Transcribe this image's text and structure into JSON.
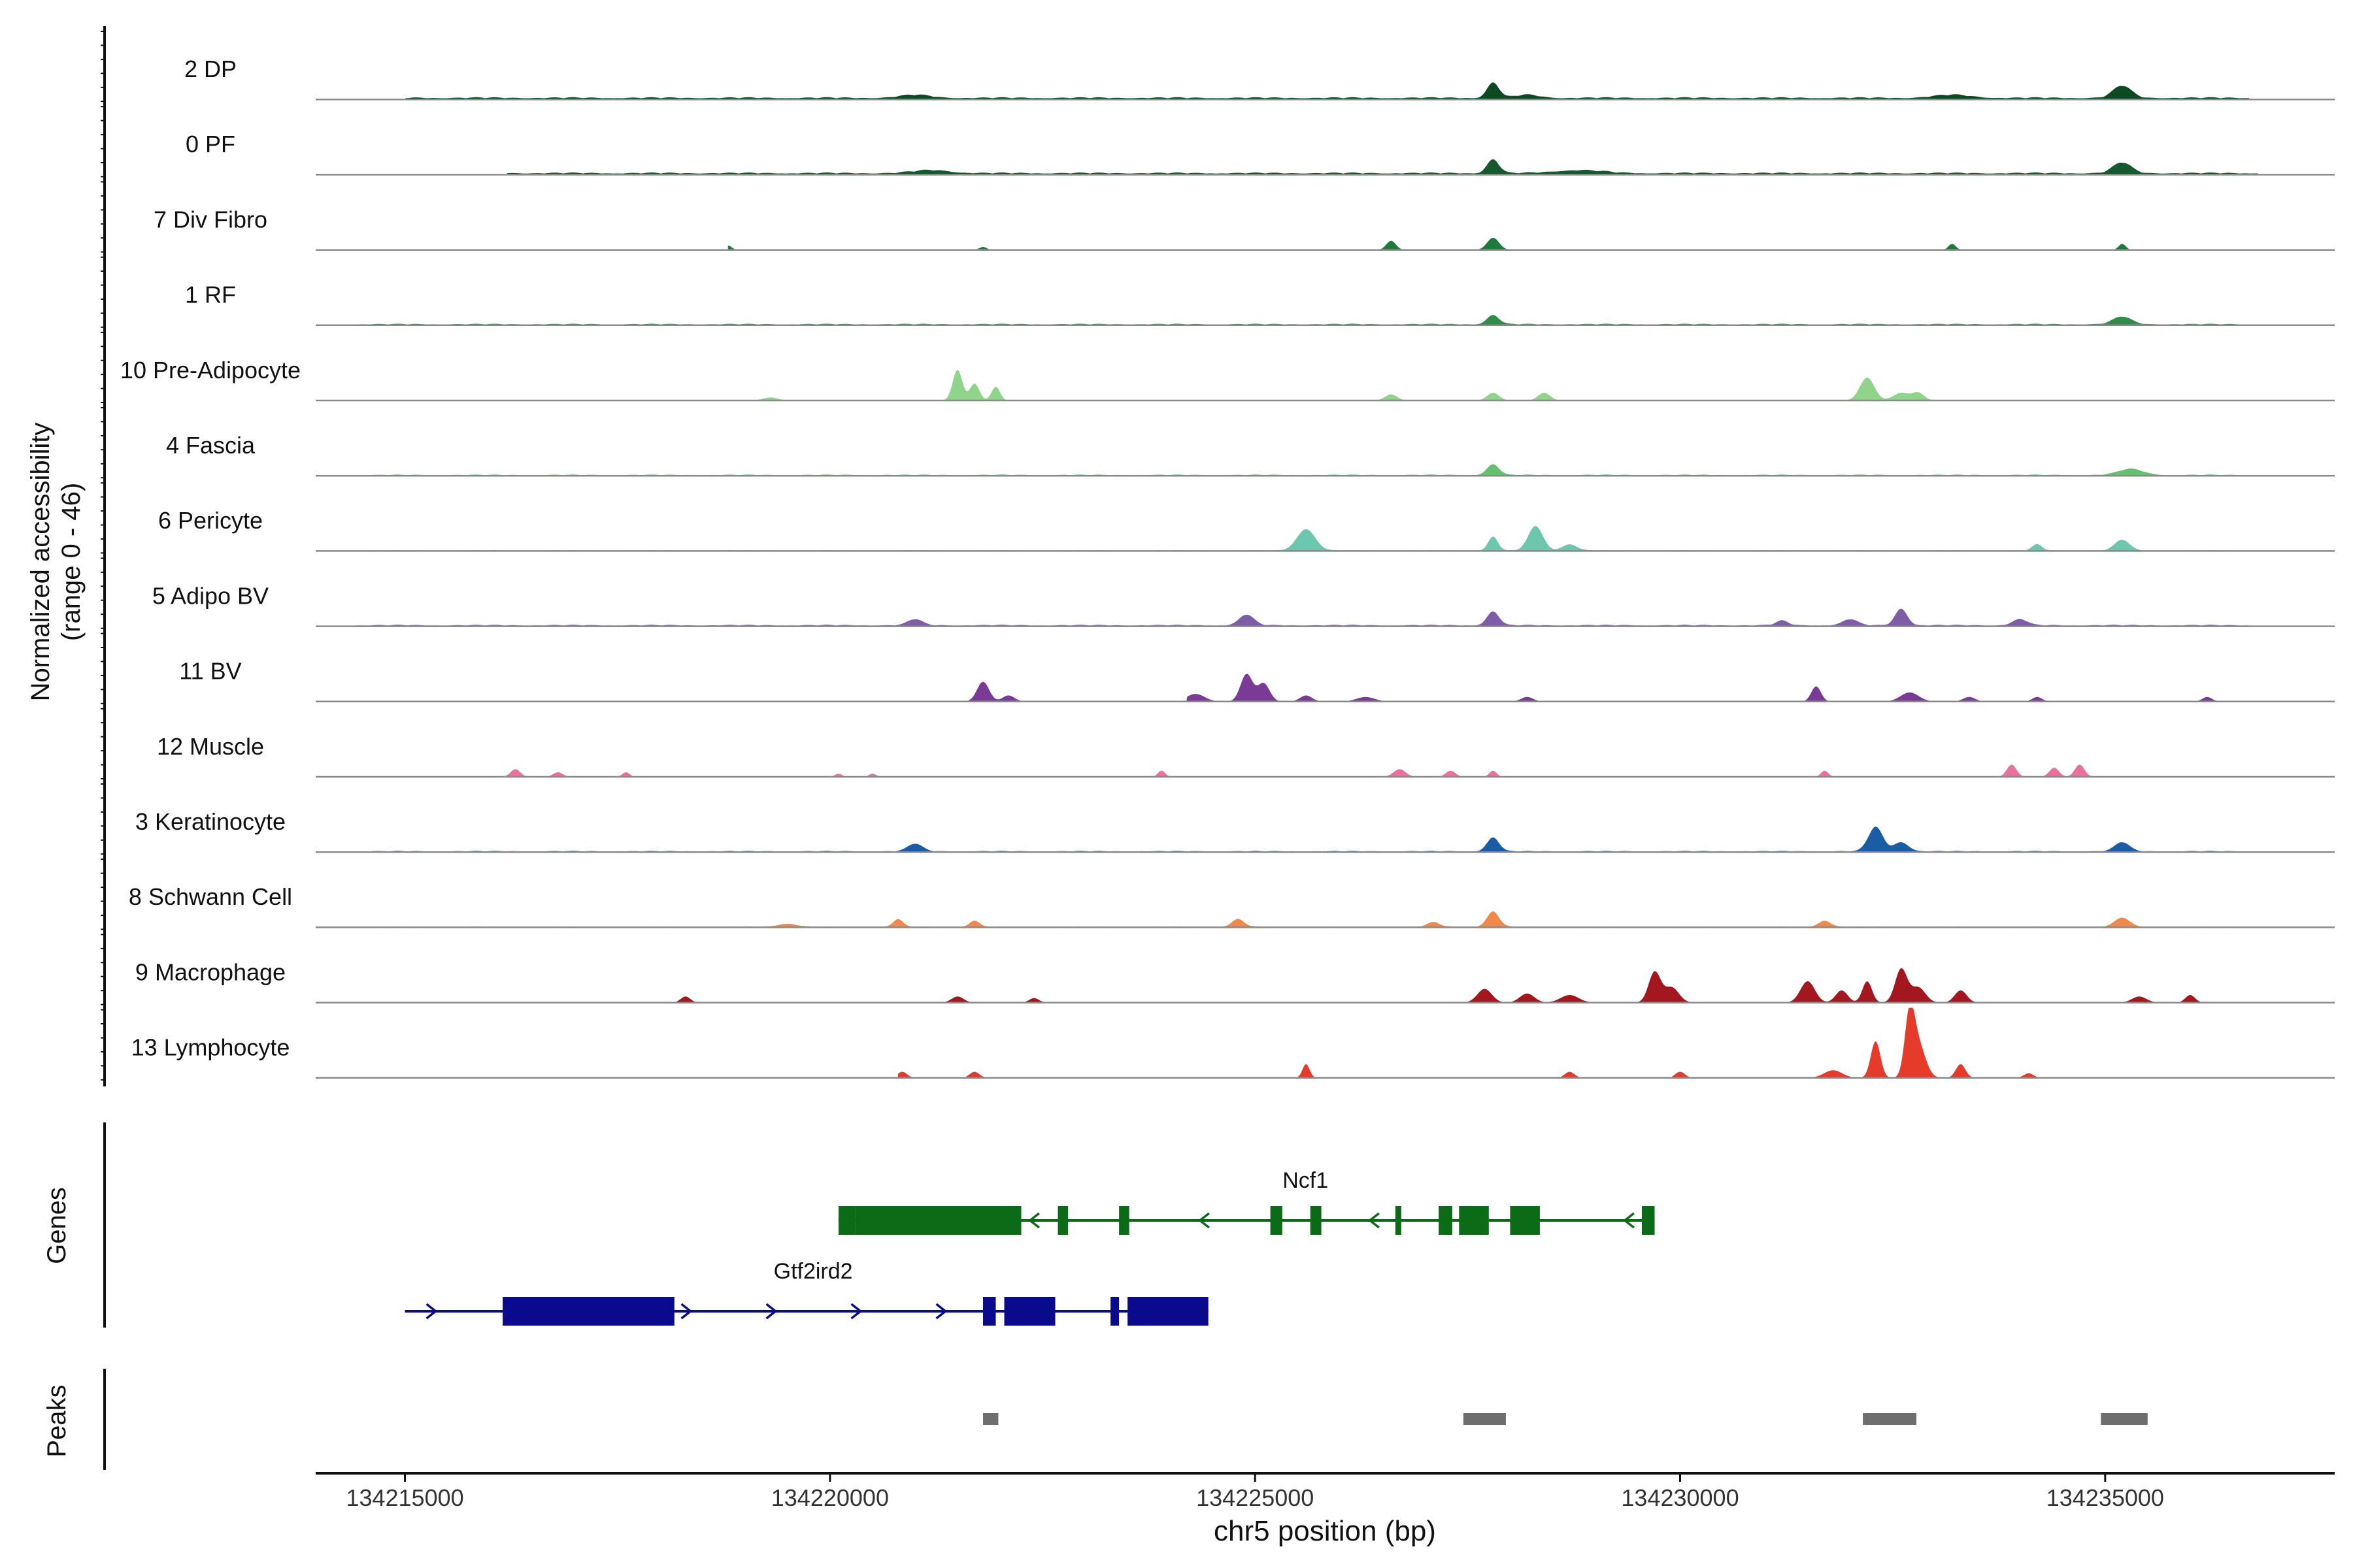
{
  "chart_data": {
    "type": "area",
    "title": "",
    "chromosome": "chr5",
    "xlabel": "chr5 position (bp)",
    "ylabel_line1": "Normalized accessibility",
    "ylabel_line2": "(range 0 - 46)",
    "y_range": [
      0,
      46
    ],
    "xlim": [
      134213950,
      134237700
    ],
    "x_ticks": [
      134215000,
      134220000,
      134225000,
      134230000,
      134235000
    ],
    "x_tick_labels": [
      "134215000",
      "134220000",
      "134225000",
      "134230000",
      "134235000"
    ],
    "genes_label": "Genes",
    "peaks_label": "Peaks",
    "tracks": [
      {
        "name": "2 DP",
        "color": "#0b4a22",
        "baseline": 1.5,
        "range": [
          134215000,
          134236700
        ],
        "bumps": [
          [
            134221000,
            250,
            2
          ],
          [
            134227800,
            100,
            10
          ],
          [
            134228200,
            200,
            2
          ],
          [
            134233200,
            300,
            2
          ],
          [
            134235200,
            150,
            8
          ]
        ],
        "gaps": [
          [
            134214400,
            134215000
          ]
        ]
      },
      {
        "name": "0 PF",
        "color": "#145a2e",
        "baseline": 1.5,
        "range": [
          134216200,
          134236800
        ],
        "bumps": [
          [
            134221200,
            300,
            2
          ],
          [
            134227800,
            100,
            9
          ],
          [
            134228800,
            400,
            2
          ],
          [
            134235200,
            150,
            7
          ]
        ],
        "gaps": []
      },
      {
        "name": "7 Div Fibro",
        "color": "#1d7a3a",
        "baseline": 0,
        "range": [
          134218800,
          134236800
        ],
        "bumps": [
          [
            134218800,
            60,
            3
          ],
          [
            134221800,
            60,
            2
          ],
          [
            134226600,
            80,
            6
          ],
          [
            134227800,
            100,
            8
          ],
          [
            134233200,
            60,
            4
          ],
          [
            134235200,
            60,
            4
          ]
        ],
        "gaps": []
      },
      {
        "name": "1 RF",
        "color": "#2f8e4b",
        "baseline": 1,
        "range": [
          134214400,
          134236700
        ],
        "bumps": [
          [
            134227800,
            100,
            6
          ],
          [
            134235200,
            150,
            5
          ]
        ],
        "gaps": []
      },
      {
        "name": "10 Pre-Adipocyte",
        "color": "#8fd48a",
        "baseline": 0,
        "range": [
          134218900,
          134236700
        ],
        "bumps": [
          [
            134219300,
            120,
            2
          ],
          [
            134221500,
            80,
            20
          ],
          [
            134221700,
            80,
            11
          ],
          [
            134221950,
            70,
            9
          ],
          [
            134226600,
            100,
            4
          ],
          [
            134227800,
            100,
            5
          ],
          [
            134228400,
            100,
            5
          ],
          [
            134232200,
            120,
            15
          ],
          [
            134232600,
            130,
            5
          ],
          [
            134232800,
            100,
            5
          ]
        ],
        "gaps": []
      },
      {
        "name": "4 Fascia",
        "color": "#67bf70",
        "baseline": 0.8,
        "range": [
          134214400,
          134236800
        ],
        "bumps": [
          [
            134227800,
            100,
            7
          ],
          [
            134235300,
            200,
            4
          ]
        ],
        "gaps": []
      },
      {
        "name": "6 Pericyte",
        "color": "#6dc6ae",
        "baseline": 0.6,
        "range": [
          134214400,
          134236800
        ],
        "bumps": [
          [
            134225600,
            150,
            14
          ],
          [
            134227800,
            80,
            9
          ],
          [
            134228300,
            120,
            16
          ],
          [
            134228700,
            120,
            4
          ],
          [
            134234200,
            80,
            4
          ],
          [
            134235200,
            120,
            7
          ]
        ],
        "gaps": []
      },
      {
        "name": "5 Adipo BV",
        "color": "#7d5ca8",
        "baseline": 1,
        "range": [
          134214400,
          134236700
        ],
        "bumps": [
          [
            134221000,
            120,
            4
          ],
          [
            134224900,
            120,
            7
          ],
          [
            134227800,
            100,
            9
          ],
          [
            134231200,
            100,
            3
          ],
          [
            134232000,
            120,
            4
          ],
          [
            134232600,
            100,
            11
          ],
          [
            134234000,
            120,
            4
          ]
        ],
        "gaps": []
      },
      {
        "name": "11 BV",
        "color": "#7a3a96",
        "baseline": 0,
        "range": [
          134221400,
          134236500
        ],
        "bumps": [
          [
            134221800,
            100,
            13
          ],
          [
            134222100,
            100,
            4
          ],
          [
            134224300,
            150,
            5
          ],
          [
            134224900,
            100,
            18
          ],
          [
            134225100,
            100,
            12
          ],
          [
            134225600,
            100,
            4
          ],
          [
            134226300,
            150,
            3
          ],
          [
            134228200,
            100,
            3
          ],
          [
            134231600,
            80,
            10
          ],
          [
            134232700,
            150,
            6
          ],
          [
            134233400,
            100,
            3
          ],
          [
            134234200,
            80,
            3
          ],
          [
            134236200,
            80,
            3
          ]
        ],
        "gaps": [
          [
            134222600,
            134224200
          ],
          [
            134229500,
            134231400
          ]
        ]
      },
      {
        "name": "12 Muscle",
        "color": "#e8719e",
        "baseline": 0,
        "range": [
          134215900,
          134236200
        ],
        "bumps": [
          [
            134216300,
            80,
            5
          ],
          [
            134216800,
            80,
            3
          ],
          [
            134217600,
            60,
            3
          ],
          [
            134220100,
            60,
            2
          ],
          [
            134220500,
            60,
            2
          ],
          [
            134223900,
            60,
            4
          ],
          [
            134226700,
            100,
            5
          ],
          [
            134227300,
            80,
            4
          ],
          [
            134227800,
            60,
            4
          ],
          [
            134231700,
            60,
            4
          ],
          [
            134233900,
            80,
            8
          ],
          [
            134234400,
            80,
            6
          ],
          [
            134234700,
            80,
            8
          ]
        ],
        "gaps": []
      },
      {
        "name": "3 Keratinocyte",
        "color": "#1a5da6",
        "baseline": 0.8,
        "range": [
          134214400,
          134236800
        ],
        "bumps": [
          [
            134221000,
            120,
            5
          ],
          [
            134227800,
            100,
            9
          ],
          [
            134232300,
            120,
            16
          ],
          [
            134232600,
            120,
            6
          ],
          [
            134235200,
            120,
            6
          ]
        ],
        "gaps": []
      },
      {
        "name": "8 Schwann Cell",
        "color": "#ef8a4a",
        "baseline": 0.6,
        "range": [
          134214400,
          134236800
        ],
        "bumps": [
          [
            134219500,
            150,
            2
          ],
          [
            134220800,
            80,
            5
          ],
          [
            134221700,
            80,
            4
          ],
          [
            134224800,
            100,
            5
          ],
          [
            134227100,
            100,
            3
          ],
          [
            134227800,
            100,
            10
          ],
          [
            134231700,
            100,
            4
          ],
          [
            134235200,
            120,
            6
          ]
        ],
        "gaps": []
      },
      {
        "name": "9 Macrophage",
        "color": "#a5171f",
        "baseline": 0,
        "range": [
          134215000,
          134236300
        ],
        "bumps": [
          [
            134218300,
            80,
            4
          ],
          [
            134221500,
            100,
            4
          ],
          [
            134222400,
            80,
            3
          ],
          [
            134227700,
            120,
            9
          ],
          [
            134228200,
            120,
            6
          ],
          [
            134228700,
            150,
            5
          ],
          [
            134229700,
            100,
            20
          ],
          [
            134229900,
            120,
            10
          ],
          [
            134231500,
            120,
            14
          ],
          [
            134231900,
            100,
            8
          ],
          [
            134232200,
            80,
            14
          ],
          [
            134232600,
            100,
            22
          ],
          [
            134232800,
            120,
            10
          ],
          [
            134233300,
            100,
            8
          ],
          [
            134235400,
            120,
            4
          ],
          [
            134236000,
            80,
            5
          ]
        ],
        "gaps": []
      },
      {
        "name": "13 Lymphocyte",
        "color": "#e63a2a",
        "baseline": 0,
        "range": [
          134220800,
          134234400
        ],
        "bumps": [
          [
            134220850,
            80,
            4
          ],
          [
            134221700,
            80,
            4
          ],
          [
            134225600,
            60,
            9
          ],
          [
            134228700,
            80,
            4
          ],
          [
            134230000,
            80,
            4
          ],
          [
            134231800,
            150,
            5
          ],
          [
            134232300,
            80,
            24
          ],
          [
            134232700,
            80,
            38
          ],
          [
            134232800,
            120,
            22
          ],
          [
            134233300,
            80,
            9
          ],
          [
            134234100,
            80,
            3
          ]
        ],
        "gaps": [
          [
            134221200,
            134221600
          ],
          [
            134221900,
            134225400
          ],
          [
            134225800,
            134228600
          ],
          [
            134229000,
            134229900
          ],
          [
            134230400,
            134231500
          ],
          [
            134233500,
            134234000
          ]
        ]
      }
    ],
    "genes": [
      {
        "name": "Ncf1",
        "color": "#0b6b16",
        "strand": "-",
        "start": 134220100,
        "end": 134229700,
        "exons": [
          [
            134220100,
            134220300
          ],
          [
            134220300,
            134222250
          ],
          [
            134222680,
            134222800
          ],
          [
            134223400,
            134223520
          ],
          [
            134225180,
            134225320
          ],
          [
            134225650,
            134225780
          ],
          [
            134226650,
            134226720
          ],
          [
            134227160,
            134227320
          ],
          [
            134227400,
            134227750
          ],
          [
            134228000,
            134228350
          ],
          [
            134229550,
            134229700
          ]
        ]
      },
      {
        "name": "Gtf2ird2",
        "color": "#0a0a8c",
        "strand": "+",
        "start": 134215000,
        "end": 134224450,
        "exons": [
          [
            134216150,
            134218170
          ],
          [
            134221800,
            134221950
          ],
          [
            134222050,
            134222650
          ],
          [
            134223300,
            134223400
          ],
          [
            134223500,
            134224450
          ]
        ]
      }
    ],
    "peaks": [
      [
        134221800,
        134221980
      ],
      [
        134227450,
        134227950
      ],
      [
        134232150,
        134232780
      ],
      [
        134234950,
        134235500
      ]
    ]
  }
}
